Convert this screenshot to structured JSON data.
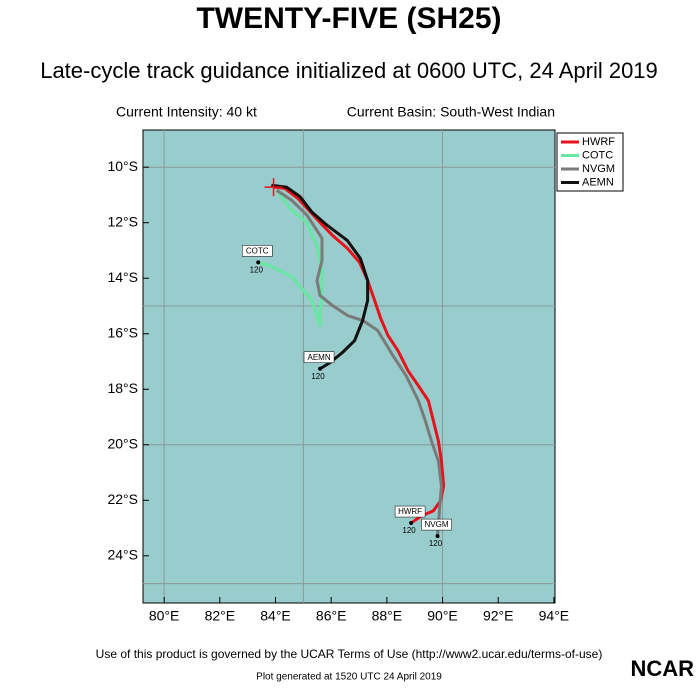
{
  "chart_data": {
    "type": "line",
    "title": "TWENTY-FIVE (SH25)",
    "subtitle": "Late-cycle track guidance initialized at 0600 UTC, 24 April 2019",
    "left_note": "Current Intensity: 40 kt",
    "right_note": "Current Basin: South-West Indian",
    "footer": "Use of this product is governed by the UCAR Terms of Use (http://www2.ucar.edu/terms-of-use)",
    "generated": "Plot generated at 1520 UTC  24 April 2019",
    "logo": "NCAR",
    "xlim": [
      79.24,
      94.04
    ],
    "ylim": [
      -25.7,
      -8.66
    ],
    "xticks": [
      {
        "value": 80,
        "label": "80°E"
      },
      {
        "value": 82,
        "label": "82°E"
      },
      {
        "value": 84,
        "label": "84°E"
      },
      {
        "value": 86,
        "label": "86°E"
      },
      {
        "value": 88,
        "label": "88°E"
      },
      {
        "value": 90,
        "label": "90°E"
      },
      {
        "value": 92,
        "label": "92°E"
      },
      {
        "value": 94,
        "label": "94°E"
      }
    ],
    "yticks": [
      {
        "value": -10,
        "label": "10°S"
      },
      {
        "value": -12,
        "label": "12°S"
      },
      {
        "value": -14,
        "label": "14°S"
      },
      {
        "value": -16,
        "label": "16°S"
      },
      {
        "value": -18,
        "label": "18°S"
      },
      {
        "value": -20,
        "label": "20°S"
      },
      {
        "value": -22,
        "label": "22°S"
      },
      {
        "value": -24,
        "label": "24°S"
      }
    ],
    "xgrid": [
      80,
      85,
      90
    ],
    "ygrid": [
      -10,
      -15,
      -20,
      -25
    ],
    "grid_color": "#8a9a9a",
    "background": "#99cccc",
    "series": [
      {
        "name": "HWRF",
        "color": "#e8121b",
        "end_label": "120",
        "x": [
          83.93,
          84.33,
          84.8,
          85.13,
          85.6,
          86.04,
          86.58,
          87.02,
          87.31,
          87.56,
          87.78,
          88.04,
          88.4,
          88.76,
          89.13,
          89.49,
          89.67,
          89.85,
          89.96,
          90.04,
          89.93,
          89.67,
          89.24,
          88.87
        ],
        "values": [
          -10.72,
          -10.76,
          -11.12,
          -11.48,
          -11.99,
          -12.45,
          -12.92,
          -13.43,
          -14.08,
          -14.8,
          -15.45,
          -16.06,
          -16.61,
          -17.33,
          -17.87,
          -18.41,
          -19.13,
          -19.86,
          -20.58,
          -21.48,
          -22.02,
          -22.38,
          -22.56,
          -22.82
        ]
      },
      {
        "name": "COTC",
        "color": "#66e8a0",
        "end_label": "120",
        "x": [
          84.04,
          84.58,
          85.13,
          85.49,
          85.67,
          85.67,
          85.6,
          85.6,
          85.31,
          84.58,
          83.78,
          83.38
        ],
        "values": [
          -10.83,
          -11.55,
          -11.99,
          -12.82,
          -13.72,
          -14.62,
          -15.16,
          -15.7,
          -14.8,
          -13.94,
          -13.54,
          -13.43
        ]
      },
      {
        "name": "NVGM",
        "color": "#7a7a7a",
        "end_label": "120",
        "x": [
          84.04,
          84.58,
          85.13,
          85.67,
          85.67,
          85.49,
          85.6,
          86.04,
          86.58,
          87.13,
          87.67,
          88.22,
          88.69,
          89.13,
          89.38,
          89.6,
          89.85,
          89.96,
          89.89,
          89.82
        ],
        "values": [
          -10.83,
          -11.19,
          -11.73,
          -12.56,
          -13.36,
          -14.08,
          -14.62,
          -14.98,
          -15.34,
          -15.52,
          -15.88,
          -16.79,
          -17.51,
          -18.41,
          -19.13,
          -19.86,
          -20.58,
          -21.48,
          -22.38,
          -23.29
        ]
      },
      {
        "name": "AEMN",
        "color": "#111111",
        "end_label": "120",
        "x": [
          83.85,
          84.4,
          84.87,
          85.31,
          85.85,
          86.58,
          87.05,
          87.31,
          87.31,
          87.13,
          86.84,
          86.4,
          85.96,
          85.6
        ],
        "values": [
          -10.65,
          -10.72,
          -11.05,
          -11.62,
          -12.09,
          -12.64,
          -13.29,
          -14.08,
          -14.8,
          -15.52,
          -16.25,
          -16.68,
          -17.04,
          -17.26
        ]
      }
    ]
  }
}
